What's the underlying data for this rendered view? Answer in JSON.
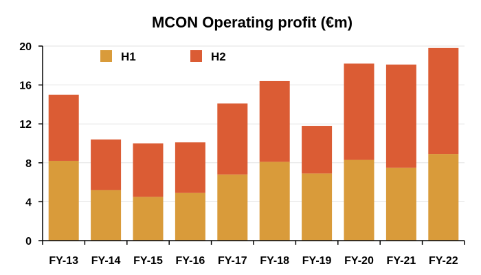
{
  "chart_data": {
    "type": "bar",
    "stacked": true,
    "title": "MCON Operating profit (€m)",
    "categories": [
      "FY-13",
      "FY-14",
      "FY-15",
      "FY-16",
      "FY-17",
      "FY-18",
      "FY-19",
      "FY-20",
      "FY-21",
      "FY-22"
    ],
    "series": [
      {
        "name": "H1",
        "color": "#D99B3A",
        "values": [
          8.2,
          5.2,
          4.5,
          4.9,
          6.8,
          8.1,
          6.9,
          8.3,
          7.5,
          8.9
        ]
      },
      {
        "name": "H2",
        "color": "#DB5C34",
        "values": [
          6.8,
          5.2,
          5.5,
          5.2,
          7.3,
          8.3,
          4.9,
          9.9,
          10.6,
          10.9
        ]
      }
    ],
    "ylim": [
      0,
      20
    ],
    "yticks": [
      0,
      4,
      8,
      12,
      16,
      20
    ],
    "grid": true,
    "legend_position": "top-left"
  }
}
